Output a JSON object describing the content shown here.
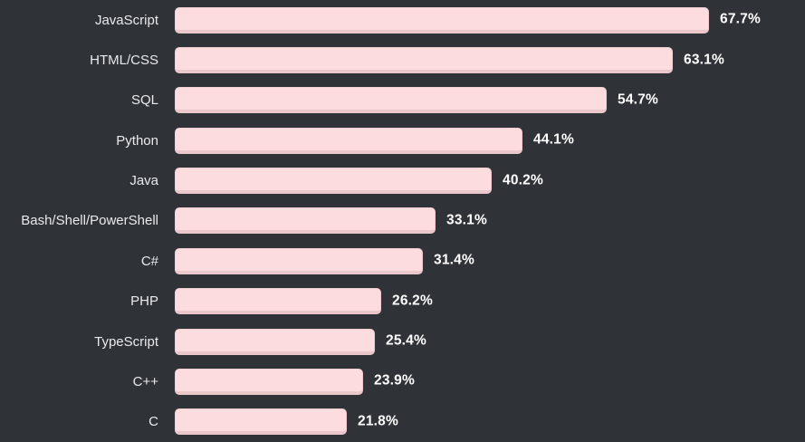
{
  "chart_data": {
    "type": "bar",
    "orientation": "horizontal",
    "title": "",
    "xlabel": "",
    "ylabel": "",
    "categories": [
      "JavaScript",
      "HTML/CSS",
      "SQL",
      "Python",
      "Java",
      "Bash/Shell/PowerShell",
      "C#",
      "PHP",
      "TypeScript",
      "C++",
      "C"
    ],
    "values": [
      67.7,
      63.1,
      54.7,
      44.1,
      40.2,
      33.1,
      31.4,
      26.2,
      25.4,
      23.9,
      21.8
    ],
    "value_labels": [
      "67.7%",
      "63.1%",
      "54.7%",
      "44.1%",
      "40.2%",
      "33.1%",
      "31.4%",
      "26.2%",
      "25.4%",
      "23.9%",
      "21.8%"
    ],
    "value_suffix": "%",
    "xlim": [
      0,
      70
    ],
    "grid": false,
    "legend": false,
    "colors": {
      "background": "#2f3338",
      "bar_fill": "#fcdcde",
      "bar_edge": "#eac7cb",
      "category_text": "#e8eaec",
      "value_text": "#ffffff"
    }
  }
}
